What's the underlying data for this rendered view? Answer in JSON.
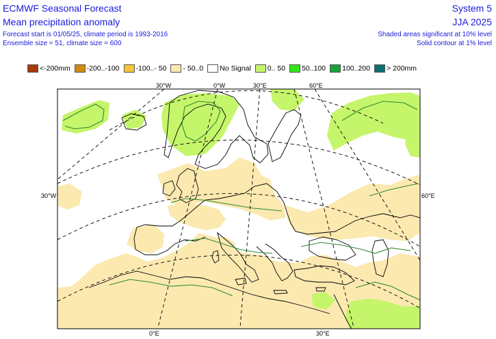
{
  "header": {
    "title": "ECMWF Seasonal Forecast",
    "subtitle": "Mean precipitation anomaly",
    "forecast_start": "Forecast start is 01/05/25, climate period is 1993-2016",
    "ensemble": "Ensemble size = 51, climate size = 600",
    "system": "System 5",
    "season": "JJA 2025",
    "sig1": "Shaded areas significant at 10% level",
    "sig2": "Solid contour at 1% level"
  },
  "legend": [
    {
      "label": "<-200mm",
      "color": "#a83a08"
    },
    {
      "label": "-200..-100",
      "color": "#d18b12"
    },
    {
      "label": "-100..- 50",
      "color": "#f5c63a"
    },
    {
      "label": "- 50..0",
      "color": "#fbe9b0"
    },
    {
      "label": "No Signal",
      "color": "#ffffff"
    },
    {
      "label": "0.. 50",
      "color": "#c5f56a"
    },
    {
      "label": "50..100",
      "color": "#32e81c"
    },
    {
      "label": "100..200",
      "color": "#1aa33b"
    },
    {
      "label": "> 200mm",
      "color": "#0d6f6f"
    }
  ],
  "map": {
    "labels": {
      "top_30w": "30°W",
      "top_0": "0°W",
      "top_30e": "30°E",
      "top_60e": "60°E",
      "left_30w": "30°W",
      "right_60e": "60°E",
      "bottom_0": "0°E",
      "bottom_30e": "30°E"
    },
    "colors": {
      "dry": "#fbe9b0",
      "wet": "#c5f56a",
      "wet_strong": "#32e81c",
      "coast": "#000000",
      "contour": "#2f8a2f",
      "grid": "#000000"
    }
  }
}
